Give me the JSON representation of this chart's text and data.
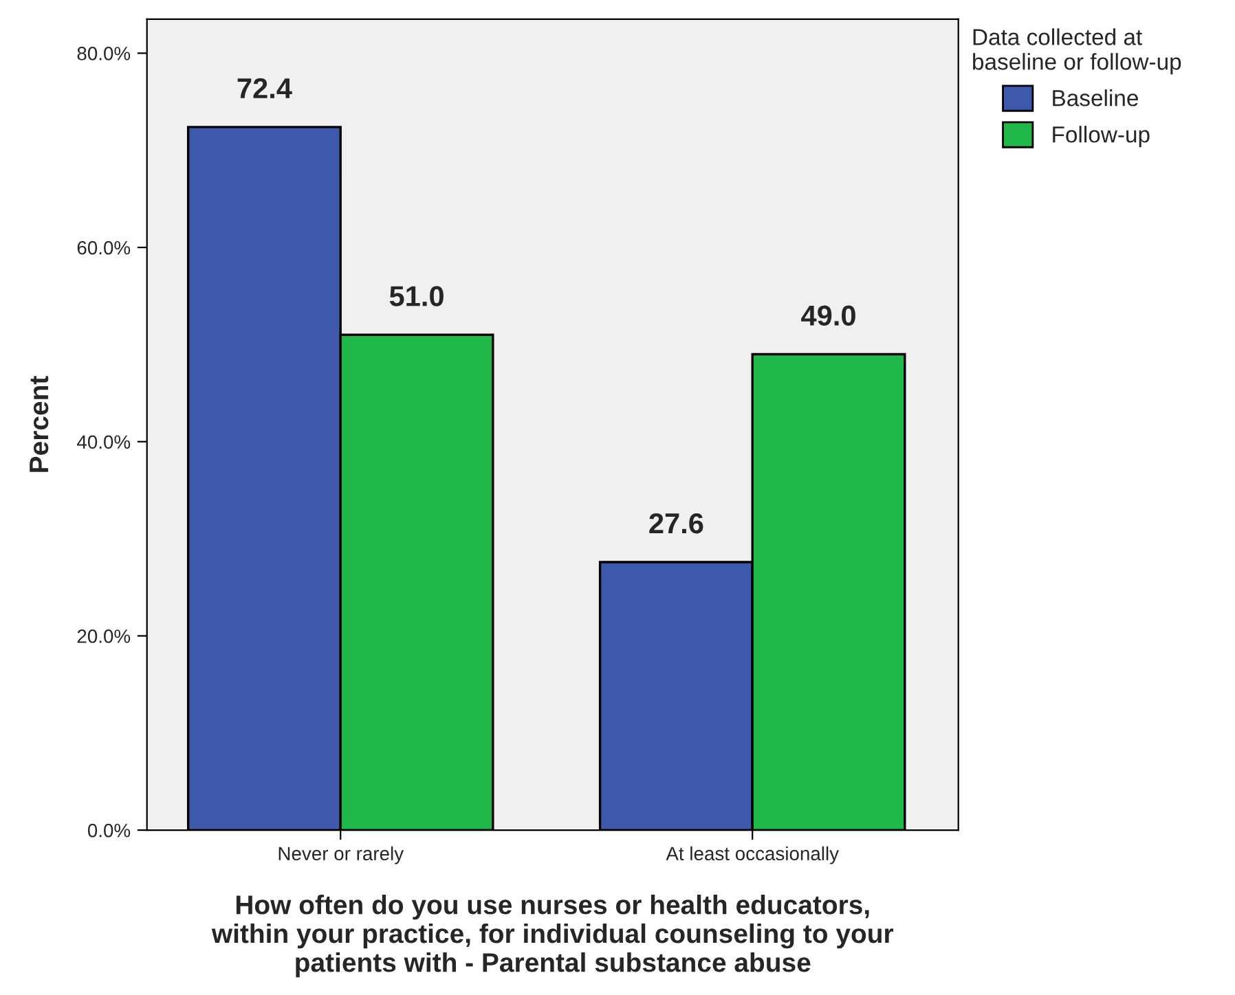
{
  "chart_data": {
    "type": "bar",
    "xlabel": "How often do you use nurses or health educators,\nwithin your practice, for individual counseling to your\npatients with - Parental substance abuse",
    "ylabel": "Percent",
    "legend_title": "Data collected at\nbaseline or follow-up",
    "categories": [
      "Never or rarely",
      "At least occasionally"
    ],
    "series": [
      {
        "name": "Baseline",
        "color": "#3e58ac",
        "values": [
          72.4,
          27.6
        ],
        "value_labels": [
          "72.4",
          "27.6"
        ]
      },
      {
        "name": "Follow-up",
        "color": "#21b84a",
        "values": [
          51.0,
          49.0
        ],
        "value_labels": [
          "51.0",
          "49.0"
        ]
      }
    ],
    "ylim": [
      0,
      83.5
    ],
    "yticks": [
      {
        "value": 0,
        "label": "0.0%"
      },
      {
        "value": 20,
        "label": "20.0%"
      },
      {
        "value": 40,
        "label": "40.0%"
      },
      {
        "value": 60,
        "label": "60.0%"
      },
      {
        "value": 80,
        "label": "80.0%"
      }
    ],
    "legend": "top right",
    "grid": false
  }
}
